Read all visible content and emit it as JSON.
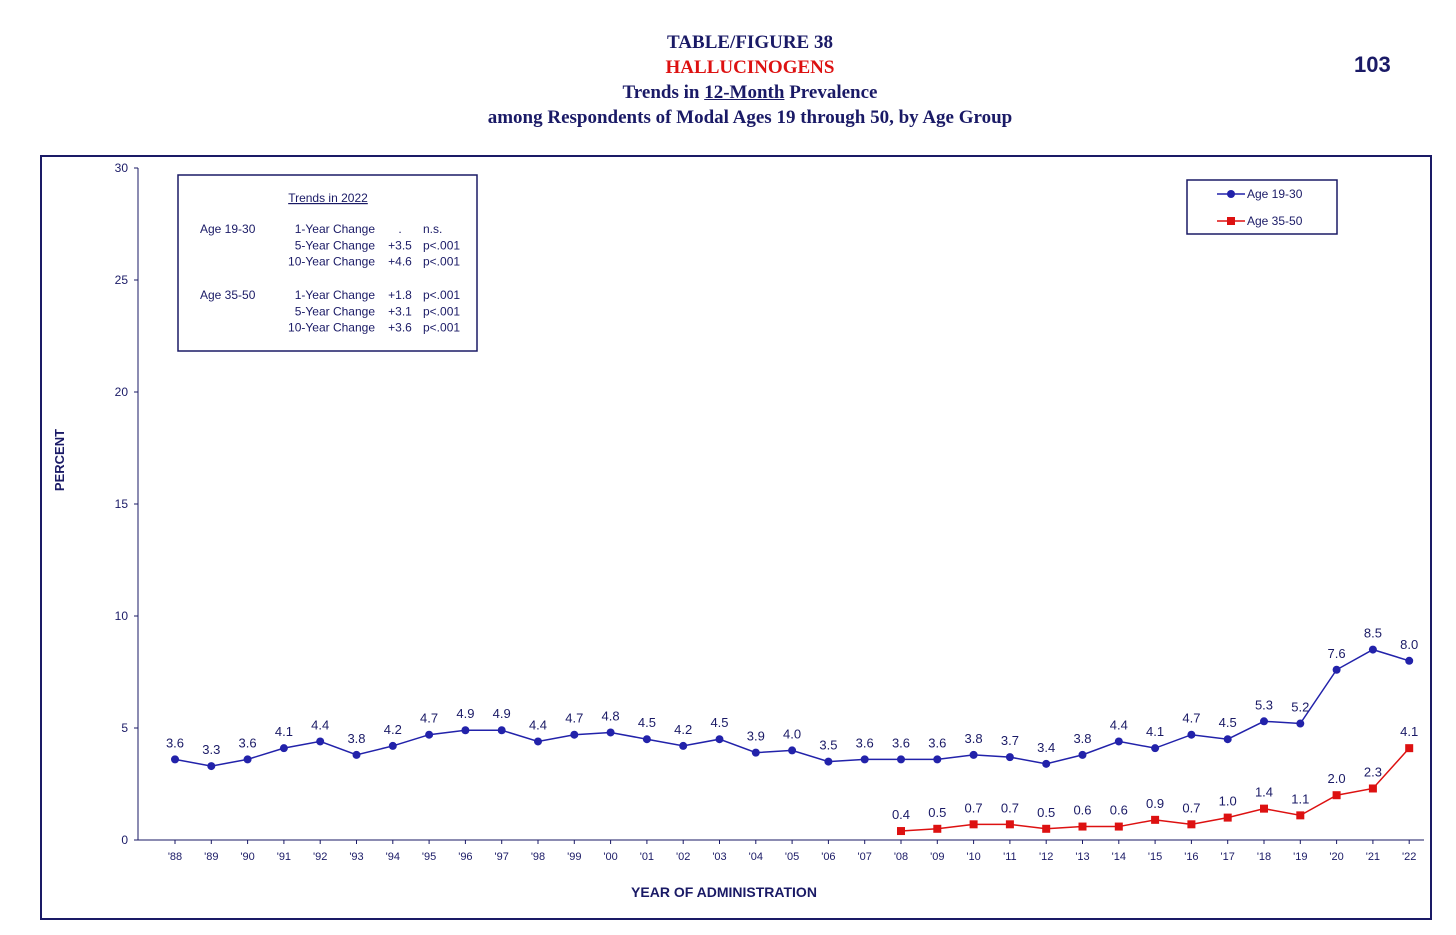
{
  "header": {
    "line1": "TABLE/FIGURE 38",
    "line2": "HALLUCINOGENS",
    "line3_pre": "Trends in ",
    "line3_ul": "12-Month",
    "line3_post": " Prevalence",
    "line4": "among Respondents of Modal Ages 19 through 50, by Age Group",
    "page_number": "103"
  },
  "colors": {
    "navy": "#1a1a66",
    "series1": "#2222aa",
    "series2": "#dd1111"
  },
  "trends_box": {
    "title": "Trends in 2022",
    "groups": [
      {
        "label": "Age 19-30",
        "rows": [
          {
            "label": "1-Year Change",
            "value": ".",
            "sig": "n.s."
          },
          {
            "label": "5-Year Change",
            "value": "+3.5",
            "sig": "p<.001"
          },
          {
            "label": "10-Year Change",
            "value": "+4.6",
            "sig": "p<.001"
          }
        ]
      },
      {
        "label": "Age 35-50",
        "rows": [
          {
            "label": "1-Year Change",
            "value": "+1.8",
            "sig": "p<.001"
          },
          {
            "label": "5-Year Change",
            "value": "+3.1",
            "sig": "p<.001"
          },
          {
            "label": "10-Year Change",
            "value": "+3.6",
            "sig": "p<.001"
          }
        ]
      }
    ]
  },
  "chart_data": {
    "type": "line",
    "xlabel": "YEAR OF ADMINISTRATION",
    "ylabel": "PERCENT",
    "ylim": [
      0,
      30
    ],
    "yticks": [
      0,
      5,
      10,
      15,
      20,
      25,
      30
    ],
    "grid": false,
    "legend_position": "top-right",
    "categories": [
      "'88",
      "'89",
      "'90",
      "'91",
      "'92",
      "'93",
      "'94",
      "'95",
      "'96",
      "'97",
      "'98",
      "'99",
      "'00",
      "'01",
      "'02",
      "'03",
      "'04",
      "'05",
      "'06",
      "'07",
      "'08",
      "'09",
      "'10",
      "'11",
      "'12",
      "'13",
      "'14",
      "'15",
      "'16",
      "'17",
      "'18",
      "'19",
      "'20",
      "'21",
      "'22"
    ],
    "series": [
      {
        "name": "Age 19-30",
        "marker": "circle",
        "color": "#2222aa",
        "values": [
          3.6,
          3.3,
          3.6,
          4.1,
          4.4,
          3.8,
          4.2,
          4.7,
          4.9,
          4.9,
          4.4,
          4.7,
          4.8,
          4.5,
          4.2,
          4.5,
          3.9,
          4.0,
          3.5,
          3.6,
          3.6,
          3.6,
          3.8,
          3.7,
          3.4,
          3.8,
          4.4,
          4.1,
          4.7,
          4.5,
          5.3,
          5.2,
          7.6,
          8.5,
          8.0
        ],
        "labels": [
          "3.6",
          "3.3",
          "3.6",
          "4.1",
          "4.4",
          "3.8",
          "4.2",
          "4.7",
          "4.9",
          "4.9",
          "4.4",
          "4.7",
          "4.8",
          "4.5",
          "4.2",
          "4.5",
          "3.9",
          "4.0",
          "3.5",
          "3.6",
          "3.6",
          "3.6",
          "3.8",
          "3.7",
          "3.4",
          "3.8",
          "4.4",
          "4.1",
          "4.7",
          "4.5",
          "5.3",
          "5.2",
          "7.6",
          "8.5",
          "8.0"
        ]
      },
      {
        "name": "Age 35-50",
        "marker": "square",
        "color": "#dd1111",
        "values": [
          null,
          null,
          null,
          null,
          null,
          null,
          null,
          null,
          null,
          null,
          null,
          null,
          null,
          null,
          null,
          null,
          null,
          null,
          null,
          null,
          0.4,
          0.5,
          0.7,
          0.7,
          0.5,
          0.6,
          0.6,
          0.9,
          0.7,
          1.0,
          1.4,
          1.1,
          2.0,
          2.3,
          4.1
        ],
        "labels": [
          "",
          "",
          "",
          "",
          "",
          "",
          "",
          "",
          "",
          "",
          "",
          "",
          "",
          "",
          "",
          "",
          "",
          "",
          "",
          "",
          "0.4",
          "0.5",
          "0.7",
          "0.7",
          "0.5",
          "0.6",
          "0.6",
          "0.9",
          "0.7",
          "1.0",
          "1.4",
          "1.1",
          "2.0",
          "2.3",
          "4.1"
        ]
      }
    ]
  }
}
